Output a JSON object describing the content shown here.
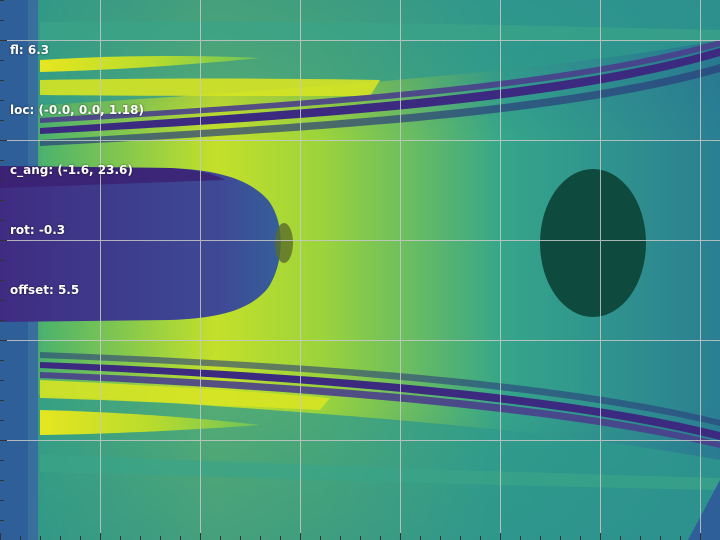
{
  "hud": {
    "fl": "fl: 6.3",
    "loc": "loc: (-0.0, 0.0, 1.18)",
    "c_ang": "c_ang: (-1.6, 23.6)",
    "rot": "rot: -0.3",
    "offset": "offset: 5.5"
  },
  "colors": {
    "background_mid": "#b7d82a",
    "background_right": "#2a8f8a",
    "dark_band": "#3b2a80",
    "left_wall": "#2f5f98",
    "disk": "#0f4a3f",
    "grid": "#c8c8c8"
  }
}
